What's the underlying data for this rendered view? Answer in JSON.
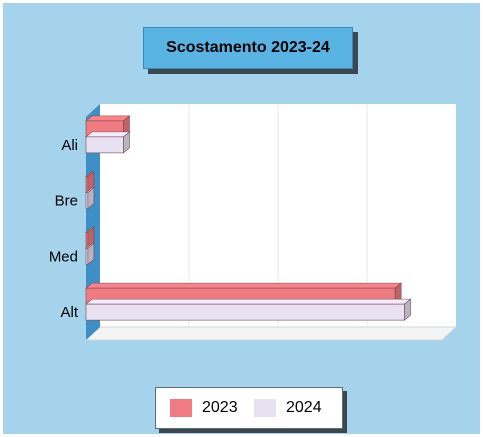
{
  "chart_data": {
    "type": "bar",
    "orientation": "horizontal",
    "title": "Scostamento 2023-24",
    "categories": [
      "Ali",
      "Bre",
      "Med",
      "Alt"
    ],
    "series": [
      {
        "name": "2023",
        "values": [
          4,
          0.2,
          0.2,
          33
        ],
        "color": "#f07c82"
      },
      {
        "name": "2024",
        "values": [
          4,
          0.2,
          0.2,
          34
        ],
        "color": "#e7e1f1"
      }
    ],
    "xlim": [
      0,
      38
    ],
    "grid": true,
    "legend_position": "bottom"
  },
  "colors": {
    "background": "#a5d3ec",
    "title_box": "#5ab4e3",
    "plot_wall": "#ffffff",
    "side_wall": "#3e8fc5"
  }
}
